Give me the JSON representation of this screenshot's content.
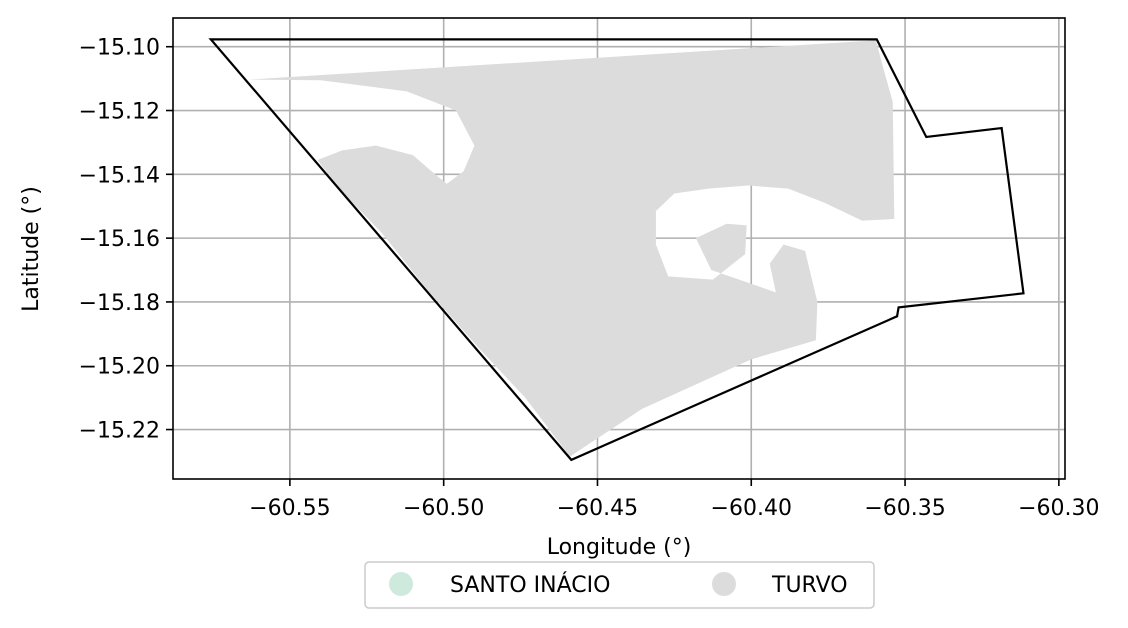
{
  "chart_data": {
    "type": "map",
    "xlabel": "Longitude (°)",
    "ylabel": "Latitude (°)",
    "xlim": [
      -60.588,
      -60.298
    ],
    "ylim": [
      -15.2355,
      -15.091
    ],
    "grid": true,
    "x_ticks": [
      {
        "value": -60.55,
        "label": "−60.55"
      },
      {
        "value": -60.5,
        "label": "−60.50"
      },
      {
        "value": -60.45,
        "label": "−60.45"
      },
      {
        "value": -60.4,
        "label": "−60.40"
      },
      {
        "value": -60.35,
        "label": "−60.35"
      },
      {
        "value": -60.3,
        "label": "−60.30"
      }
    ],
    "y_ticks": [
      {
        "value": -15.1,
        "label": "−15.10"
      },
      {
        "value": -15.12,
        "label": "−15.12"
      },
      {
        "value": -15.14,
        "label": "−15.14"
      },
      {
        "value": -15.16,
        "label": "−15.16"
      },
      {
        "value": -15.18,
        "label": "−15.18"
      },
      {
        "value": -15.2,
        "label": "−15.20"
      },
      {
        "value": -15.22,
        "label": "−15.22"
      }
    ],
    "legend": {
      "placement": "bottom-center",
      "entries": [
        {
          "label": "SANTO INÁCIO",
          "color": "#cdeadd"
        },
        {
          "label": "TURVO",
          "color": "#dcdcdc"
        }
      ]
    },
    "boundary": {
      "stroke": "#000000",
      "points": [
        [
          -60.5757,
          -15.0977
        ],
        [
          -60.3592,
          -15.0977
        ],
        [
          -60.3431,
          -15.1283
        ],
        [
          -60.3186,
          -15.1255
        ],
        [
          -60.3115,
          -15.1773
        ],
        [
          -60.3521,
          -15.1817
        ],
        [
          -60.3526,
          -15.1845
        ],
        [
          -60.4585,
          -15.2295
        ],
        [
          -60.5757,
          -15.0977
        ]
      ]
    },
    "regions": [
      {
        "name": "TURVO",
        "color": "#dcdcdc",
        "outline": [
          [
            -60.5636,
            -15.1103
          ],
          [
            -60.3595,
            -15.098
          ],
          [
            -60.357,
            -15.107
          ],
          [
            -60.354,
            -15.1173
          ],
          [
            -60.3535,
            -15.154
          ],
          [
            -60.364,
            -15.1545
          ],
          [
            -60.376,
            -15.149
          ],
          [
            -60.388,
            -15.1445
          ],
          [
            -60.401,
            -15.1435
          ],
          [
            -60.414,
            -15.1445
          ],
          [
            -60.425,
            -15.146
          ],
          [
            -60.431,
            -15.1515
          ],
          [
            -60.431,
            -15.162
          ],
          [
            -60.427,
            -15.172
          ],
          [
            -60.4125,
            -15.173
          ],
          [
            -60.402,
            -15.165
          ],
          [
            -60.4015,
            -15.156
          ],
          [
            -60.408,
            -15.1555
          ],
          [
            -60.418,
            -15.16
          ],
          [
            -60.413,
            -15.17
          ],
          [
            -60.392,
            -15.177
          ],
          [
            -60.394,
            -15.168
          ],
          [
            -60.3895,
            -15.162
          ],
          [
            -60.3825,
            -15.164
          ],
          [
            -60.3785,
            -15.18
          ],
          [
            -60.379,
            -15.192
          ],
          [
            -60.4,
            -15.198
          ],
          [
            -60.4355,
            -15.2135
          ],
          [
            -60.459,
            -15.2285
          ],
          [
            -60.4735,
            -15.21
          ],
          [
            -60.489,
            -15.194
          ],
          [
            -60.5055,
            -15.176
          ],
          [
            -60.52,
            -15.1585
          ],
          [
            -60.534,
            -15.1445
          ],
          [
            -60.541,
            -15.1355
          ],
          [
            -60.533,
            -15.1325
          ],
          [
            -60.522,
            -15.131
          ],
          [
            -60.51,
            -15.134
          ],
          [
            -60.504,
            -15.139
          ],
          [
            -60.499,
            -15.143
          ],
          [
            -60.4935,
            -15.139
          ],
          [
            -60.49,
            -15.131
          ],
          [
            -60.496,
            -15.12
          ],
          [
            -60.512,
            -15.114
          ],
          [
            -60.54,
            -15.1105
          ],
          [
            -60.5636,
            -15.1103
          ]
        ]
      }
    ]
  }
}
